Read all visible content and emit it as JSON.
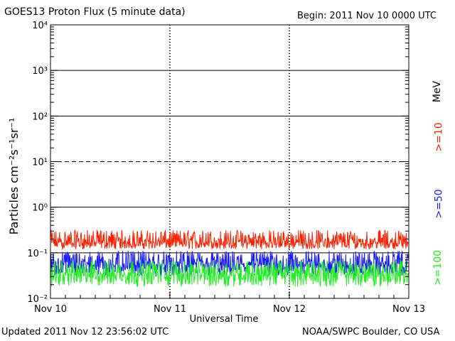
{
  "header": {
    "title": "GOES13 Proton Flux (5 minute data)",
    "begin": "Begin: 2011 Nov 10 0000 UTC"
  },
  "footer": {
    "updated": "Updated 2011 Nov 12 23:56:02 UTC",
    "credit": "NOAA/SWPC Boulder, CO USA"
  },
  "legend": {
    "unit": "MeV",
    "colors": {
      "ge10": "#ff2000",
      "ge50": "#1a1aff",
      "ge100": "#22ee22"
    }
  },
  "chart_data": {
    "type": "line",
    "title": "GOES13 Proton Flux (5 minute data)",
    "xlabel": "Universal Time",
    "ylabel": "Particles cm⁻²s⁻¹sr⁻¹",
    "y_scale": "log",
    "ylim": [
      0.01,
      10000
    ],
    "y_ticks": [
      {
        "value": 0.01,
        "label": "10⁻²"
      },
      {
        "value": 0.1,
        "label": "10⁻¹"
      },
      {
        "value": 1,
        "label": "10⁰"
      },
      {
        "value": 10,
        "label": "10¹"
      },
      {
        "value": 100,
        "label": "10²"
      },
      {
        "value": 1000,
        "label": "10³"
      },
      {
        "value": 10000,
        "label": "10⁴"
      }
    ],
    "x_ticks": [
      "Nov 10",
      "Nov 11",
      "Nov 12",
      "Nov 13"
    ],
    "xlim_days": [
      0,
      3
    ],
    "grid": "horizontal decade lines (10¹ dashed), dashed day separators",
    "series": [
      {
        "name": ">=10",
        "color": "#ff2000",
        "baseline": 0.17,
        "spread_low": 0.12,
        "spread_high": 0.32
      },
      {
        "name": ">=50",
        "color": "#1a1aff",
        "baseline": 0.055,
        "spread_low": 0.03,
        "spread_high": 0.11
      },
      {
        "name": ">=100",
        "color": "#22ee22",
        "baseline": 0.035,
        "spread_low": 0.018,
        "spread_high": 0.07
      }
    ]
  }
}
